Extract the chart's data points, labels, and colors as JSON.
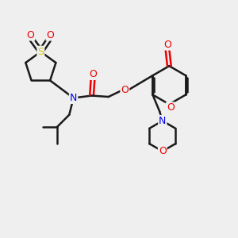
{
  "bg_color": "#efefef",
  "bond_color": "#1a1a1a",
  "bond_width": 1.8,
  "atom_colors": {
    "N": "#0000ee",
    "O": "#ee0000",
    "S": "#cccc00"
  },
  "font_size": 8.5
}
